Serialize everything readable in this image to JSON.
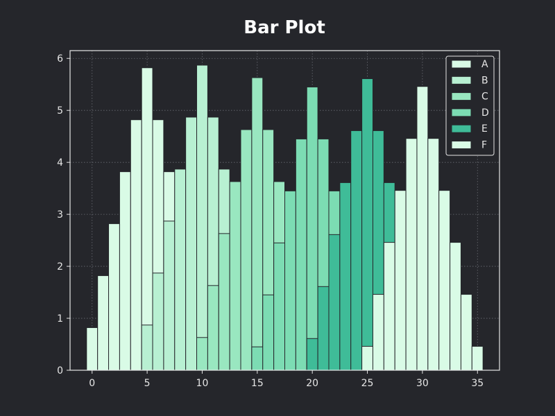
{
  "chart_data": {
    "type": "bar",
    "title": "Bar Plot",
    "xlabel": "",
    "ylabel": "",
    "xlim": [
      -2,
      37
    ],
    "ylim": [
      0,
      6.15
    ],
    "x_ticks": [
      0,
      5,
      10,
      15,
      20,
      25,
      30,
      35
    ],
    "y_ticks": [
      0,
      1,
      2,
      3,
      4,
      5,
      6
    ],
    "grid": true,
    "legend_placement": "top-right",
    "bar_width": 1,
    "series": [
      {
        "name": "A",
        "color": "#d9fbe6",
        "x": [
          0,
          1,
          2,
          3,
          4,
          5,
          6,
          7,
          8,
          9,
          10,
          11
        ],
        "values": [
          0.82,
          1.82,
          2.82,
          3.82,
          4.82,
          5.82,
          4.82,
          3.82,
          2.87,
          1.87,
          0.87,
          0.0
        ]
      },
      {
        "name": "B",
        "color": "#b8f0d2",
        "x": [
          5,
          6,
          7,
          8,
          9,
          10,
          11,
          12,
          13,
          14,
          15,
          16
        ],
        "values": [
          0.87,
          1.87,
          2.87,
          3.87,
          4.87,
          5.87,
          4.87,
          3.87,
          2.63,
          1.63,
          0.63,
          0.0
        ]
      },
      {
        "name": "C",
        "color": "#99e7c0",
        "x": [
          10,
          11,
          12,
          13,
          14,
          15,
          16,
          17,
          18,
          19,
          20,
          21
        ],
        "values": [
          0.63,
          1.63,
          2.63,
          3.63,
          4.63,
          5.63,
          4.63,
          3.63,
          2.45,
          1.45,
          0.45,
          0.0
        ]
      },
      {
        "name": "D",
        "color": "#7cdcb3",
        "x": [
          15,
          16,
          17,
          18,
          19,
          20,
          21,
          22,
          23,
          24,
          25,
          26
        ],
        "values": [
          0.45,
          1.45,
          2.45,
          3.45,
          4.45,
          5.45,
          4.45,
          3.45,
          2.61,
          1.61,
          0.61,
          0.0
        ]
      },
      {
        "name": "E",
        "color": "#3fbc98",
        "x": [
          20,
          21,
          22,
          23,
          24,
          25,
          26,
          27
        ],
        "values": [
          0.61,
          1.61,
          2.61,
          3.61,
          4.61,
          5.61,
          4.61,
          3.61
        ]
      },
      {
        "name": "F",
        "color": "#d9fbe6",
        "x": [
          25,
          26,
          27,
          28,
          29,
          30,
          31,
          32,
          33,
          34,
          35
        ],
        "values": [
          0.46,
          1.46,
          2.46,
          3.46,
          4.46,
          5.46,
          4.46,
          3.46,
          2.46,
          1.46,
          0.46
        ]
      }
    ]
  },
  "colors": {
    "background": "#25262b",
    "axes_frame": "#e6e6e6",
    "grid": "#6a6c74",
    "bar_edge": "#25262b"
  }
}
